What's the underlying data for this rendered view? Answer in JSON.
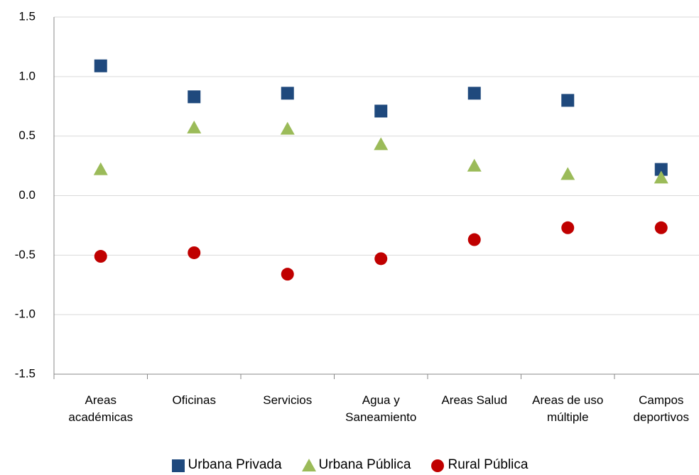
{
  "chart_data": {
    "type": "scatter",
    "categories": [
      "Areas académicas",
      "Oficinas",
      "Servicios",
      "Agua y Saneamiento",
      "Areas Salud",
      "Areas de uso múltiple",
      "Campos deportivos"
    ],
    "series": [
      {
        "name": "Urbana Privada",
        "color": "#1f497d",
        "marker": "square",
        "values": [
          1.09,
          0.83,
          0.86,
          0.71,
          0.86,
          0.8,
          0.22
        ]
      },
      {
        "name": "Urbana Pública",
        "color": "#9bbb59",
        "marker": "triangle",
        "values": [
          0.22,
          0.57,
          0.56,
          0.43,
          0.25,
          0.18,
          0.15
        ]
      },
      {
        "name": "Rural Pública",
        "color": "#c00000",
        "marker": "circle",
        "values": [
          -0.51,
          -0.48,
          -0.66,
          -0.53,
          -0.37,
          -0.27,
          -0.27
        ]
      }
    ],
    "ylim": [
      -1.5,
      1.5
    ],
    "yticks": [
      -1.5,
      {
        "value": -1,
        "label": "-1.0"
      },
      -0.5,
      {
        "value": 0,
        "label": "0.0"
      },
      0.5,
      {
        "value": 1,
        "label": "1.0"
      },
      1.5
    ],
    "grid": true,
    "legend": "bottom"
  }
}
